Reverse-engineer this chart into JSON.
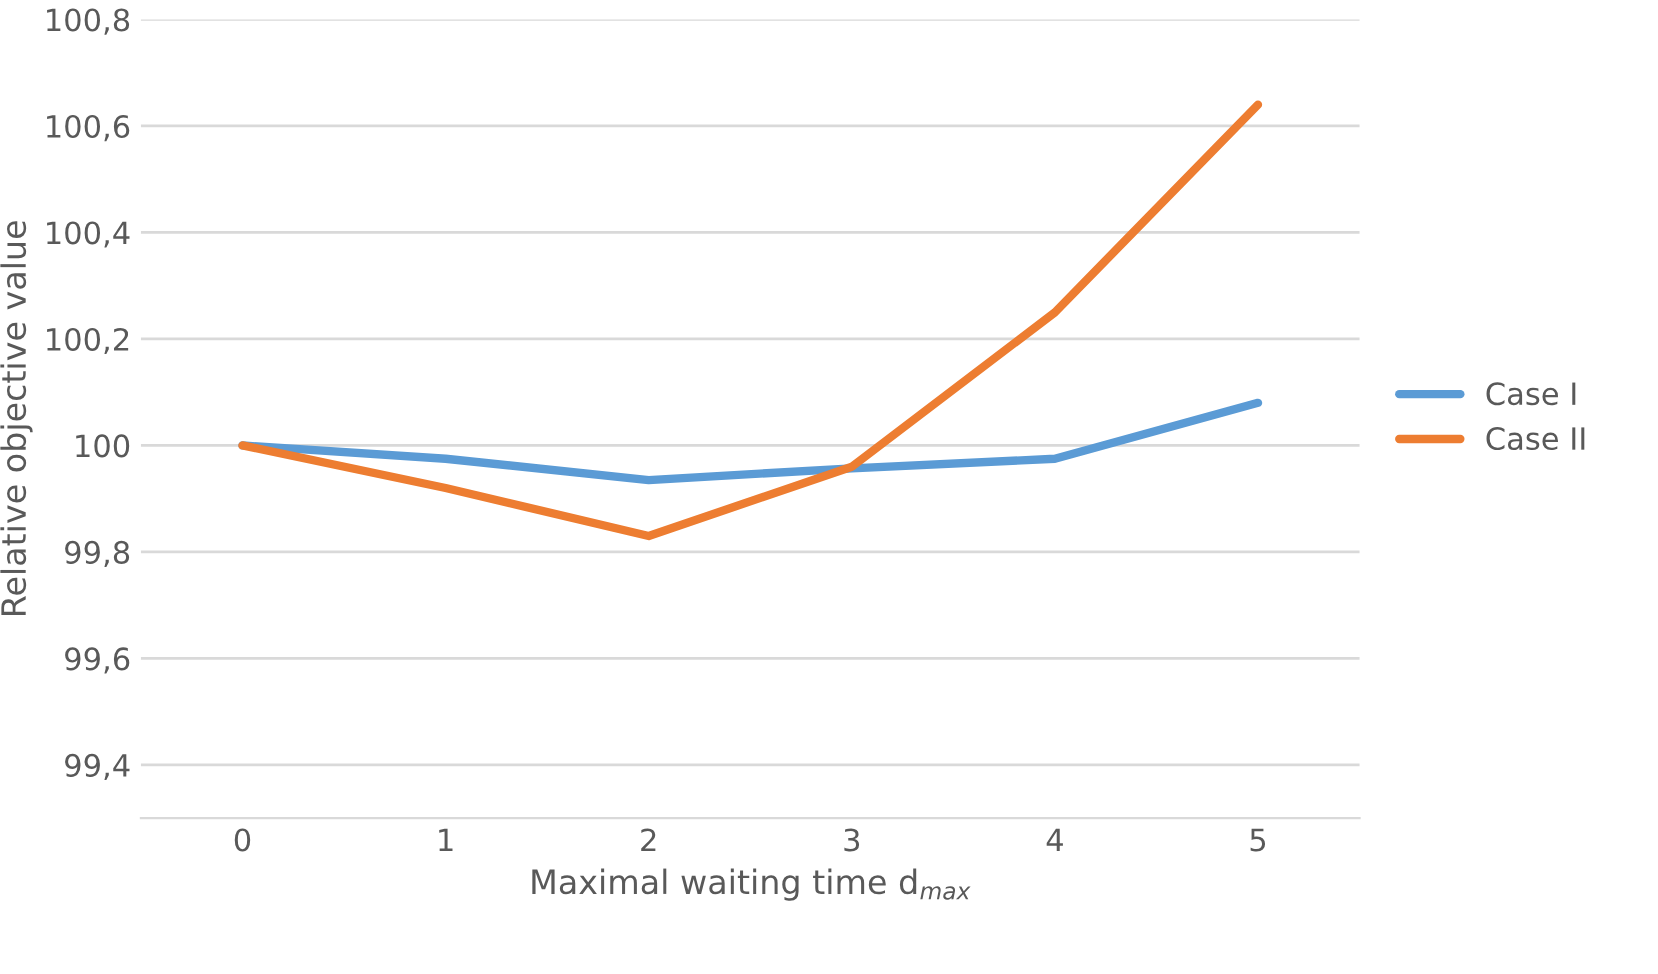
{
  "chart_data": {
    "type": "line",
    "xlabel": "Maximal waiting time d$_{max}$",
    "ylabel": "Relative objective value",
    "categories": [
      "0",
      "1",
      "2",
      "3",
      "4",
      "5"
    ],
    "series": [
      {
        "name": "Case I",
        "color": "#5b9bd5",
        "values": [
          100,
          99.975,
          99.935,
          99.957,
          99.975,
          100.08
        ]
      },
      {
        "name": "Case II",
        "color": "#ed7d31",
        "values": [
          100,
          99.92,
          99.83,
          99.96,
          100.25,
          100.64
        ]
      }
    ],
    "ylim": [
      99.3,
      100.8
    ],
    "yticks": [
      {
        "value": 99.4,
        "label": "99,4"
      },
      {
        "value": 99.6,
        "label": "99,6"
      },
      {
        "value": 99.8,
        "label": "99,8"
      },
      100,
      {
        "value": 100.2,
        "label": "100,2"
      },
      {
        "value": 100.4,
        "label": "100,4"
      },
      {
        "value": 100.6,
        "label": "100,6"
      },
      {
        "value": 100.8,
        "label": "100,8"
      }
    ],
    "grid": "y",
    "legend": "right",
    "marker": "none",
    "line_style": "solid"
  }
}
